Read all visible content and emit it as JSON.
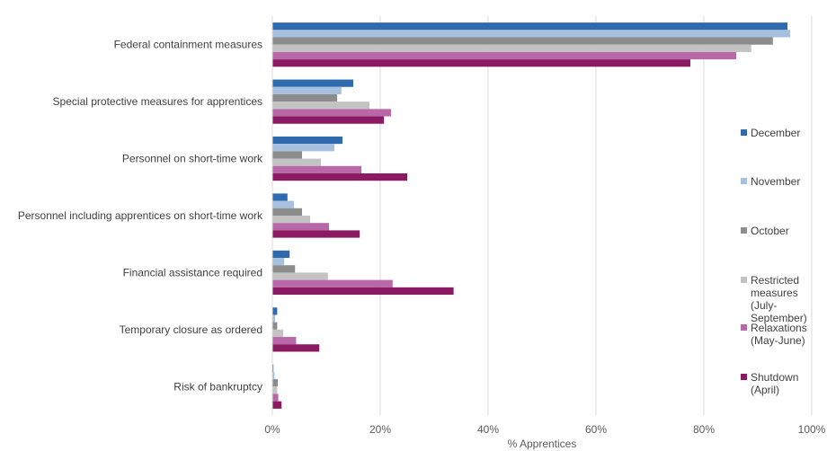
{
  "chart_data": {
    "type": "bar",
    "orientation": "horizontal",
    "categories": [
      "Federal containment measures",
      "Special protective measures for apprentices",
      "Personnel on short-time work",
      "Personnel including apprentices on short-time work",
      "Financial assistance required",
      "Temporary closure as ordered",
      "Risk of bankruptcy"
    ],
    "series": [
      {
        "name": "December",
        "color": "#2e6aad",
        "values": [
          95.5,
          15.0,
          13.0,
          2.8,
          3.2,
          0.9,
          0.2
        ]
      },
      {
        "name": "November",
        "color": "#a7c0e0",
        "values": [
          96.0,
          12.8,
          11.5,
          4.0,
          2.2,
          0.5,
          0.4
        ]
      },
      {
        "name": "October",
        "color": "#8c8c8c",
        "values": [
          92.8,
          12.0,
          5.5,
          5.5,
          4.2,
          0.9,
          1.0
        ]
      },
      {
        "name": "Restricted measures (July-September)",
        "legend_lines": [
          "Restricted",
          "measures",
          "(July-",
          "September)"
        ],
        "color": "#c3c3c3",
        "values": [
          88.8,
          18.0,
          9.0,
          7.0,
          10.3,
          2.0,
          0.9
        ]
      },
      {
        "name": "Relaxations (May-June)",
        "legend_lines": [
          "Relaxations",
          "(May-June)"
        ],
        "color": "#b868a8",
        "values": [
          86.0,
          22.0,
          16.5,
          10.5,
          22.3,
          4.4,
          1.1
        ]
      },
      {
        "name": "Shutdown (April)",
        "legend_lines": [
          "Shutdown",
          "(April)"
        ],
        "color": "#8b1a63",
        "values": [
          77.5,
          20.7,
          25.0,
          16.2,
          33.6,
          8.7,
          1.7
        ]
      }
    ],
    "xlim": [
      0,
      100
    ],
    "xticks": [
      0,
      20,
      40,
      60,
      80,
      100
    ],
    "xtick_labels": [
      "0%",
      "20%",
      "40%",
      "60%",
      "80%",
      "100%"
    ],
    "xlabel": "% Apprentices",
    "ylabel": "",
    "title": "",
    "grid": "vertical",
    "legend_position": "right"
  }
}
